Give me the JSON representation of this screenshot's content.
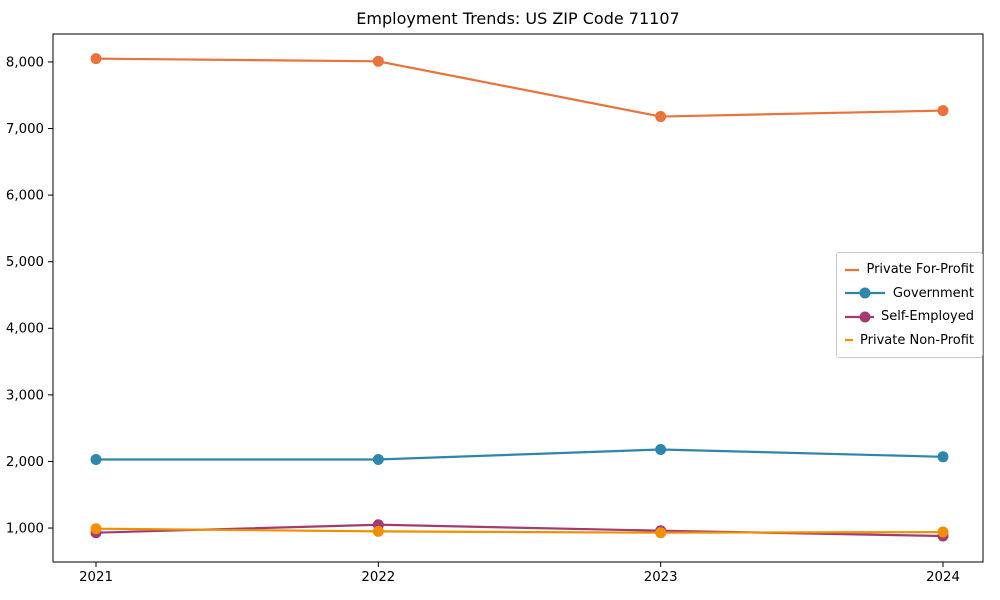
{
  "chart_data": {
    "type": "line",
    "title": "Employment Trends: US ZIP Code 71107",
    "xlabel": "",
    "ylabel": "",
    "x": [
      "2021",
      "2022",
      "2023",
      "2024"
    ],
    "series": [
      {
        "name": "Private For-Profit",
        "color": "#E8743B",
        "values": [
          8050,
          8010,
          7180,
          7270
        ]
      },
      {
        "name": "Government",
        "color": "#2E86AB",
        "values": [
          2030,
          2030,
          2180,
          2070
        ]
      },
      {
        "name": "Self-Employed",
        "color": "#A23B72",
        "values": [
          930,
          1050,
          960,
          880
        ]
      },
      {
        "name": "Private Non-Profit",
        "color": "#F18F01",
        "values": [
          990,
          950,
          930,
          940
        ]
      }
    ],
    "ylim": [
      490,
      8420
    ],
    "yticks": [
      1000,
      2000,
      3000,
      4000,
      5000,
      6000,
      7000,
      8000
    ],
    "ytick_labels": [
      "1,000",
      "2,000",
      "3,000",
      "4,000",
      "5,000",
      "6,000",
      "7,000",
      "8,000"
    ],
    "grid": false,
    "legend_position": "center right",
    "marker": "circle",
    "axis_color": "#000000"
  }
}
